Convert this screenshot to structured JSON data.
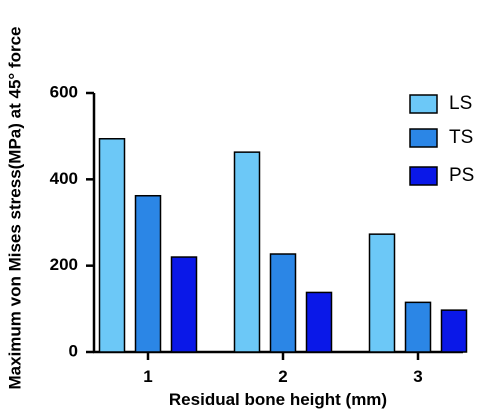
{
  "chart_data": {
    "type": "bar",
    "title": "",
    "xlabel": "Residual bone height (mm)",
    "ylabel": "Maximum von Mises stress(MPa) at 45° force",
    "categories": [
      "1",
      "2",
      "3"
    ],
    "ylim": [
      0,
      600
    ],
    "yticks": [
      0,
      200,
      400,
      600
    ],
    "grid": false,
    "legend_position": "top-right",
    "series": [
      {
        "name": "LS",
        "color": "#6cc8f7",
        "values": [
          494,
          463,
          273
        ]
      },
      {
        "name": "TS",
        "color": "#2b86e6",
        "values": [
          362,
          227,
          115
        ]
      },
      {
        "name": "PS",
        "color": "#0a18e8",
        "values": [
          220,
          138,
          97
        ]
      }
    ]
  }
}
